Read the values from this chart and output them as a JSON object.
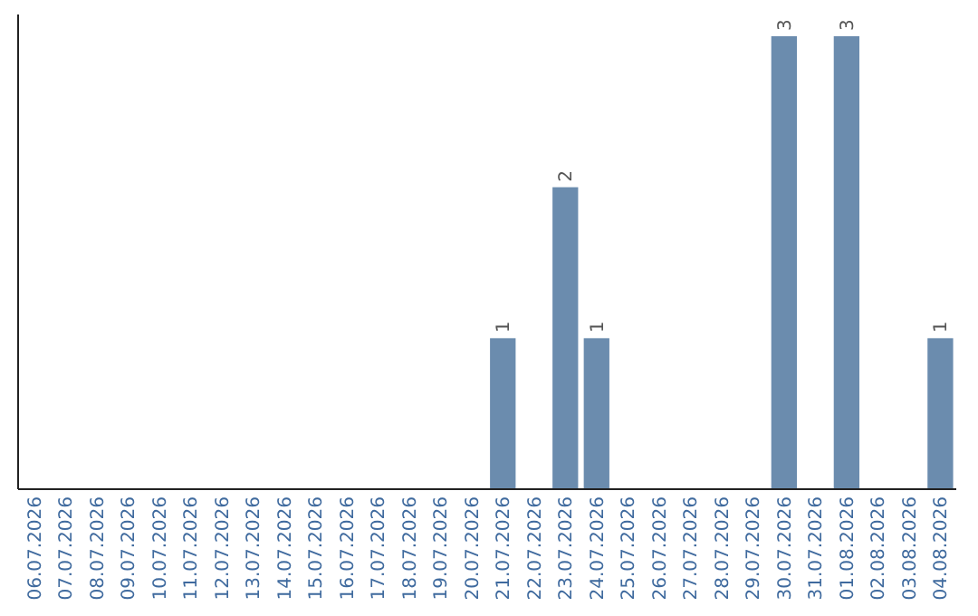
{
  "chart_data": {
    "type": "bar",
    "categories": [
      "06.07.2026",
      "07.07.2026",
      "08.07.2026",
      "09.07.2026",
      "10.07.2026",
      "11.07.2026",
      "12.07.2026",
      "13.07.2026",
      "14.07.2026",
      "15.07.2026",
      "16.07.2026",
      "17.07.2026",
      "18.07.2026",
      "19.07.2026",
      "20.07.2026",
      "21.07.2026",
      "22.07.2026",
      "23.07.2026",
      "24.07.2026",
      "25.07.2026",
      "26.07.2026",
      "27.07.2026",
      "28.07.2026",
      "29.07.2026",
      "30.07.2026",
      "31.07.2026",
      "01.08.2026",
      "02.08.2026",
      "03.08.2026",
      "04.08.2026"
    ],
    "values": [
      null,
      null,
      null,
      null,
      null,
      null,
      null,
      null,
      null,
      null,
      null,
      null,
      null,
      null,
      null,
      1,
      null,
      2,
      1,
      null,
      null,
      null,
      null,
      null,
      3,
      null,
      3,
      null,
      null,
      1
    ],
    "value_labels": [
      null,
      null,
      null,
      null,
      null,
      null,
      null,
      null,
      null,
      null,
      null,
      null,
      null,
      null,
      null,
      "1",
      null,
      "2",
      "1",
      null,
      null,
      null,
      null,
      null,
      "3",
      null,
      "3",
      null,
      null,
      "1"
    ],
    "color": "#6b8cae",
    "ylim": [
      0,
      3
    ],
    "tick_labels": "x"
  }
}
